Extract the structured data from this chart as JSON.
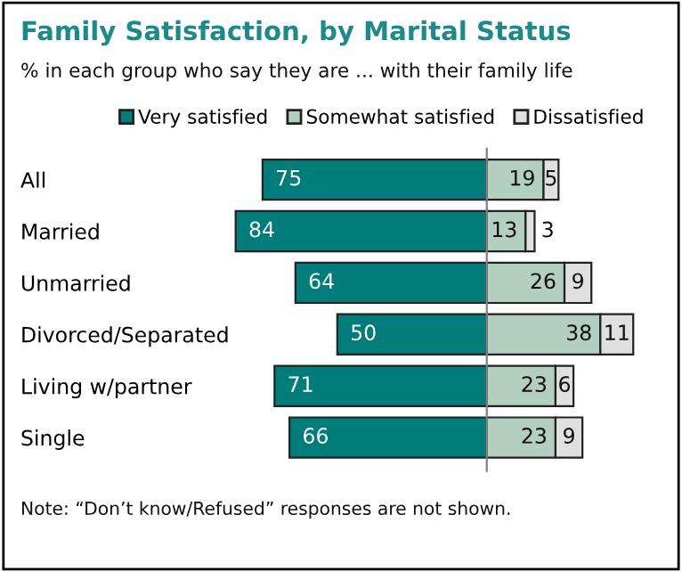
{
  "chart_data": [
    {
      "type": "bar",
      "orientation": "horizontal",
      "title": "Family Satisfaction, by Marital Status",
      "subtitle": "% in each group who say they are ... with their family life",
      "categories": [
        "All",
        "Married",
        "Unmarried",
        "Divorced/Separated",
        "Living w/partner",
        "Single"
      ],
      "series": [
        {
          "name": "Very satisfied",
          "color": "#007c7a",
          "values": [
            75,
            84,
            64,
            50,
            71,
            66
          ]
        }
      ],
      "tick_labels": "y",
      "data_labels": true,
      "legend": "top",
      "grid": false,
      "annotations": [
        "Note: “Don’t know/Refused” responses are not shown."
      ]
    },
    {
      "type": "bar",
      "orientation": "horizontal",
      "stacked": true,
      "categories": [
        null,
        null,
        null,
        null,
        null,
        null
      ],
      "series": [
        {
          "name": "Somewhat satisfied",
          "color": "#b3cfbf",
          "values": [
            19,
            13,
            26,
            38,
            23,
            23
          ]
        },
        {
          "name": "Dissatisfied",
          "color": "#e0e0e0",
          "values": [
            5,
            3,
            9,
            11,
            6,
            9
          ]
        }
      ],
      "tick_labels": false,
      "data_labels": true,
      "legend": "top",
      "grid": false
    }
  ]
}
